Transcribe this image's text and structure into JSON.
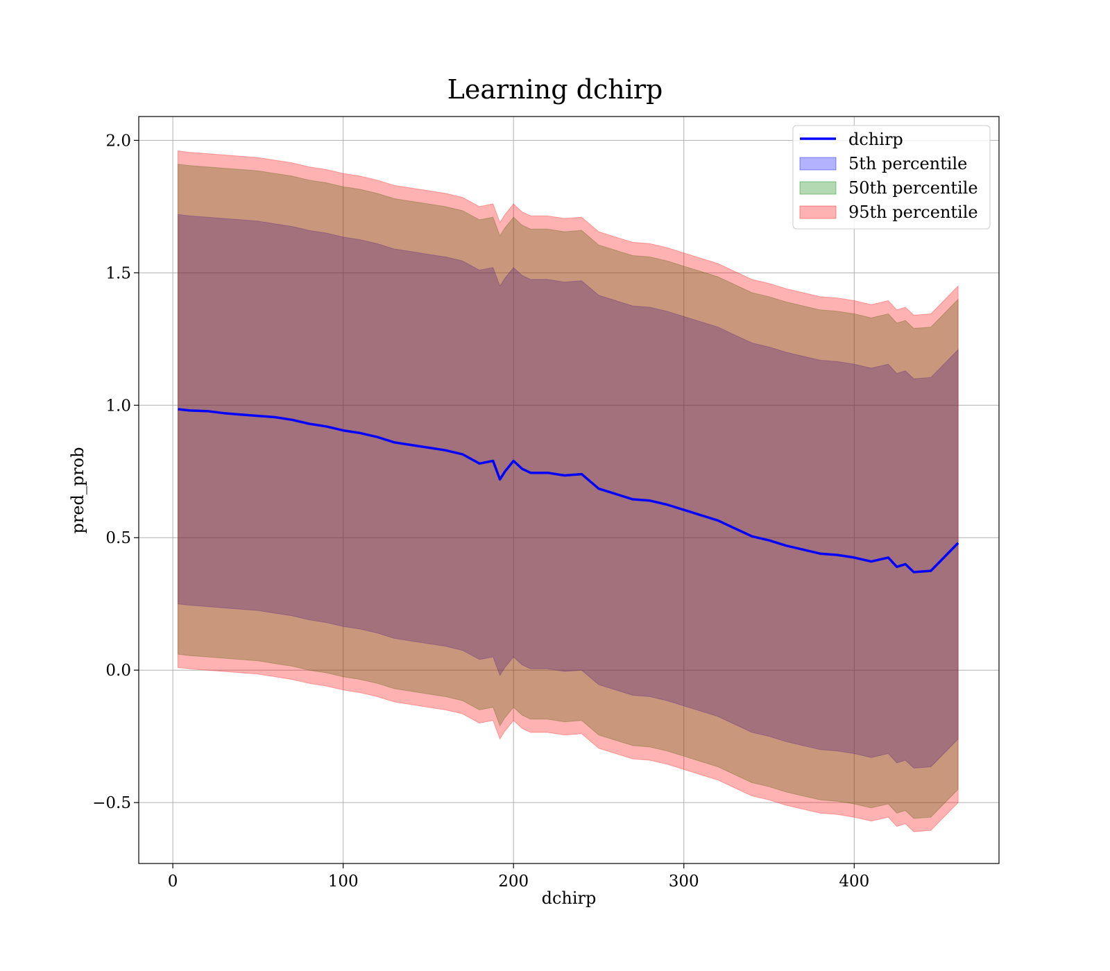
{
  "chart_data": {
    "type": "area",
    "title": "Learning dchirp",
    "xlabel": "dchirp",
    "ylabel": "pred_prob",
    "xlim": [
      -20,
      485
    ],
    "ylim": [
      -0.73,
      2.09
    ],
    "xticks": [
      0,
      100,
      200,
      300,
      400
    ],
    "yticks": [
      -0.5,
      0.0,
      0.5,
      1.0,
      1.5,
      2.0
    ],
    "xtick_labels": [
      "0",
      "100",
      "200",
      "300",
      "400"
    ],
    "ytick_labels": [
      "−0.5",
      "0.0",
      "0.5",
      "1.0",
      "1.5",
      "2.0"
    ],
    "grid": true,
    "legend_position": "top-right",
    "x": [
      3,
      10,
      20,
      30,
      40,
      50,
      60,
      70,
      80,
      90,
      100,
      110,
      120,
      130,
      140,
      150,
      160,
      170,
      180,
      188,
      192,
      195,
      200,
      205,
      210,
      220,
      230,
      240,
      250,
      260,
      270,
      280,
      290,
      300,
      310,
      320,
      330,
      340,
      350,
      360,
      370,
      380,
      390,
      400,
      410,
      420,
      425,
      430,
      435,
      445,
      461
    ],
    "series": [
      {
        "name": "dchirp",
        "kind": "line",
        "color": "#0000ff",
        "values": [
          0.985,
          0.98,
          0.978,
          0.97,
          0.965,
          0.96,
          0.955,
          0.945,
          0.93,
          0.92,
          0.905,
          0.895,
          0.88,
          0.86,
          0.85,
          0.84,
          0.83,
          0.815,
          0.78,
          0.79,
          0.72,
          0.75,
          0.79,
          0.76,
          0.745,
          0.745,
          0.735,
          0.74,
          0.685,
          0.665,
          0.645,
          0.64,
          0.625,
          0.605,
          0.585,
          0.565,
          0.535,
          0.505,
          0.49,
          0.47,
          0.455,
          0.44,
          0.435,
          0.425,
          0.41,
          0.425,
          0.39,
          0.4,
          0.37,
          0.375,
          0.48
        ]
      },
      {
        "name": "5th percentile",
        "kind": "band",
        "color": "#0000ff",
        "lower": [
          0.25,
          0.245,
          0.24,
          0.235,
          0.23,
          0.225,
          0.215,
          0.205,
          0.19,
          0.18,
          0.165,
          0.155,
          0.14,
          0.12,
          0.11,
          0.1,
          0.09,
          0.075,
          0.04,
          0.05,
          -0.02,
          0.01,
          0.05,
          0.02,
          0.005,
          0.005,
          -0.005,
          0.0,
          -0.055,
          -0.075,
          -0.095,
          -0.1,
          -0.115,
          -0.135,
          -0.155,
          -0.175,
          -0.205,
          -0.235,
          -0.25,
          -0.27,
          -0.285,
          -0.3,
          -0.305,
          -0.315,
          -0.33,
          -0.315,
          -0.35,
          -0.34,
          -0.37,
          -0.365,
          -0.26
        ],
        "upper": [
          1.72,
          1.715,
          1.71,
          1.705,
          1.7,
          1.695,
          1.685,
          1.675,
          1.66,
          1.65,
          1.635,
          1.625,
          1.61,
          1.59,
          1.58,
          1.57,
          1.56,
          1.545,
          1.51,
          1.52,
          1.45,
          1.48,
          1.52,
          1.49,
          1.475,
          1.475,
          1.465,
          1.47,
          1.415,
          1.395,
          1.375,
          1.37,
          1.355,
          1.335,
          1.315,
          1.295,
          1.265,
          1.235,
          1.22,
          1.2,
          1.185,
          1.17,
          1.165,
          1.155,
          1.14,
          1.155,
          1.12,
          1.13,
          1.1,
          1.105,
          1.21
        ]
      },
      {
        "name": "50th percentile",
        "kind": "band",
        "color": "#008000",
        "lower": [
          0.06,
          0.055,
          0.05,
          0.045,
          0.04,
          0.035,
          0.025,
          0.015,
          0.0,
          -0.01,
          -0.025,
          -0.035,
          -0.05,
          -0.07,
          -0.08,
          -0.09,
          -0.1,
          -0.115,
          -0.15,
          -0.14,
          -0.21,
          -0.18,
          -0.14,
          -0.17,
          -0.185,
          -0.185,
          -0.195,
          -0.19,
          -0.245,
          -0.265,
          -0.285,
          -0.29,
          -0.305,
          -0.325,
          -0.345,
          -0.365,
          -0.395,
          -0.425,
          -0.44,
          -0.46,
          -0.475,
          -0.49,
          -0.495,
          -0.505,
          -0.52,
          -0.505,
          -0.54,
          -0.53,
          -0.56,
          -0.555,
          -0.45
        ],
        "upper": [
          1.91,
          1.905,
          1.9,
          1.895,
          1.89,
          1.885,
          1.875,
          1.865,
          1.85,
          1.84,
          1.825,
          1.815,
          1.8,
          1.78,
          1.77,
          1.76,
          1.75,
          1.735,
          1.7,
          1.71,
          1.64,
          1.67,
          1.71,
          1.68,
          1.665,
          1.665,
          1.655,
          1.66,
          1.605,
          1.585,
          1.565,
          1.56,
          1.545,
          1.525,
          1.505,
          1.485,
          1.455,
          1.425,
          1.41,
          1.39,
          1.375,
          1.36,
          1.355,
          1.345,
          1.33,
          1.345,
          1.31,
          1.32,
          1.29,
          1.295,
          1.4
        ]
      },
      {
        "name": "95th percentile",
        "kind": "band",
        "color": "#ff0000",
        "lower": [
          0.01,
          0.005,
          0.0,
          -0.005,
          -0.01,
          -0.015,
          -0.025,
          -0.035,
          -0.05,
          -0.06,
          -0.075,
          -0.085,
          -0.1,
          -0.12,
          -0.13,
          -0.14,
          -0.15,
          -0.165,
          -0.2,
          -0.19,
          -0.26,
          -0.23,
          -0.19,
          -0.22,
          -0.235,
          -0.235,
          -0.245,
          -0.24,
          -0.295,
          -0.315,
          -0.335,
          -0.34,
          -0.355,
          -0.375,
          -0.395,
          -0.415,
          -0.445,
          -0.475,
          -0.49,
          -0.51,
          -0.525,
          -0.54,
          -0.545,
          -0.555,
          -0.57,
          -0.555,
          -0.59,
          -0.58,
          -0.61,
          -0.605,
          -0.5
        ],
        "upper": [
          1.96,
          1.955,
          1.95,
          1.945,
          1.94,
          1.935,
          1.925,
          1.915,
          1.9,
          1.89,
          1.875,
          1.865,
          1.85,
          1.83,
          1.82,
          1.81,
          1.8,
          1.785,
          1.75,
          1.76,
          1.69,
          1.72,
          1.76,
          1.73,
          1.715,
          1.715,
          1.705,
          1.71,
          1.655,
          1.635,
          1.615,
          1.61,
          1.595,
          1.575,
          1.555,
          1.535,
          1.505,
          1.475,
          1.46,
          1.44,
          1.425,
          1.41,
          1.405,
          1.395,
          1.38,
          1.395,
          1.36,
          1.37,
          1.34,
          1.345,
          1.45
        ]
      }
    ]
  }
}
